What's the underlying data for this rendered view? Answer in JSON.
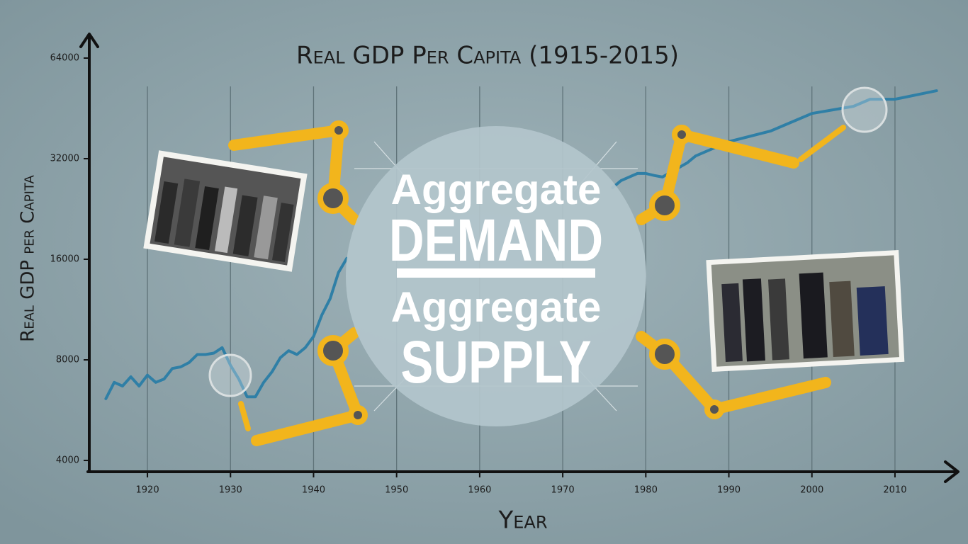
{
  "chart_data": {
    "type": "line",
    "title": "Real GDP Per Capita (1915-2015)",
    "x_label": "Year",
    "y_label": "Real GDP per Capita",
    "x": [
      1915,
      1916,
      1917,
      1918,
      1919,
      1920,
      1921,
      1922,
      1923,
      1924,
      1925,
      1926,
      1927,
      1928,
      1929,
      1930,
      1931,
      1932,
      1933,
      1934,
      1935,
      1936,
      1937,
      1938,
      1939,
      1940,
      1941,
      1942,
      1943,
      1944,
      1960,
      1976,
      1977,
      1978,
      1979,
      1980,
      1981,
      1982,
      1985,
      1986,
      1988,
      1990,
      1995,
      2000,
      2005,
      2007,
      2010,
      2015
    ],
    "values": [
      6120,
      6850,
      6680,
      7120,
      6680,
      7200,
      6850,
      7010,
      7540,
      7620,
      7850,
      8300,
      8300,
      8380,
      8700,
      7700,
      7010,
      6200,
      6200,
      6850,
      7370,
      8120,
      8520,
      8300,
      8700,
      9400,
      10900,
      12200,
      14600,
      16100,
      null,
      26200,
      27500,
      28200,
      28900,
      28900,
      28500,
      28200,
      31100,
      32600,
      34250,
      35970,
      38700,
      43700,
      45900,
      48200,
      48200,
      51100
    ],
    "color": "#2f7fa6",
    "log_y": true,
    "grid": true,
    "xlim": [
      1913,
      2017
    ],
    "ylim": [
      3700,
      75000
    ],
    "xticks": [
      1920,
      1930,
      1940,
      1950,
      1960,
      1970,
      1980,
      1990,
      2000,
      2010
    ],
    "yticks": [
      4000,
      8000,
      16000,
      32000,
      64000
    ]
  },
  "overlay": {
    "lines": [
      "Aggregate",
      "DEMAND",
      "Aggregate",
      "SUPPLY"
    ]
  }
}
